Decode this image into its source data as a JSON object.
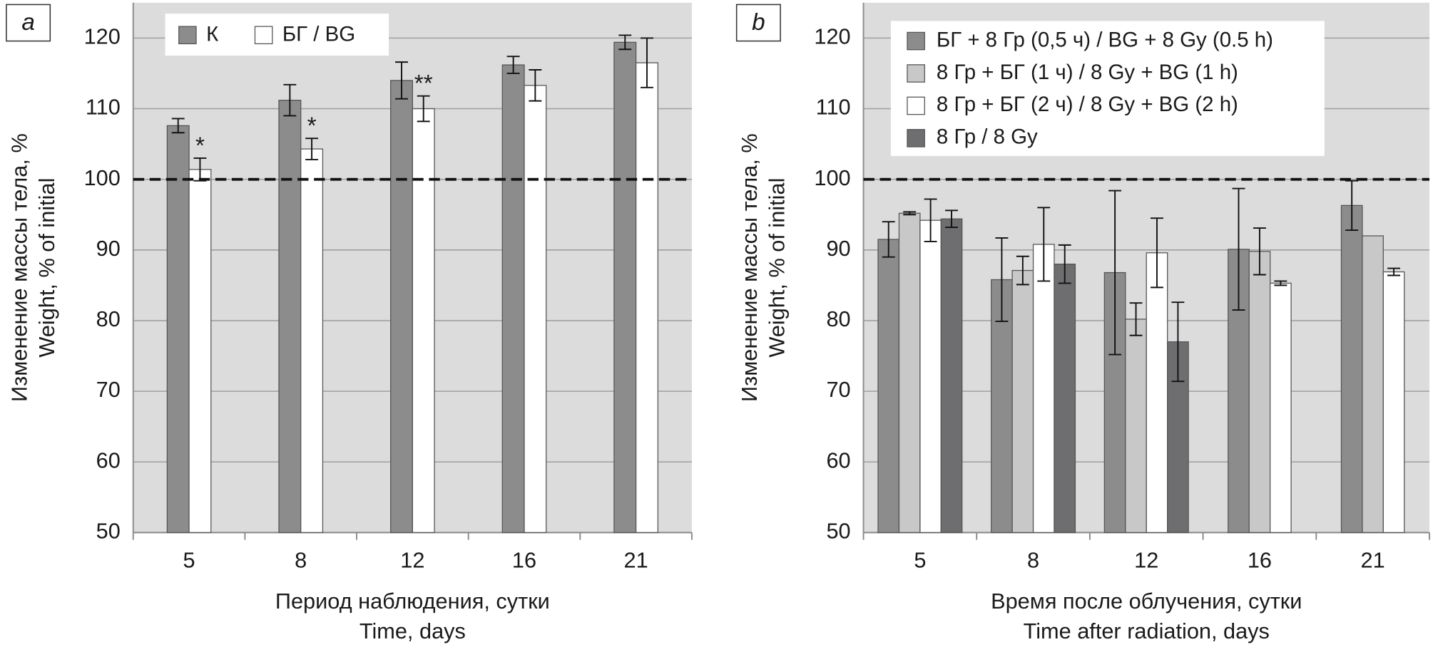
{
  "chart_data": [
    {
      "type": "bar",
      "panel_label": "a",
      "y_label": [
        "Изменение массы тела, %",
        "Weight, % of initial"
      ],
      "x_label": [
        "Период наблюдения, сутки",
        "Time, days"
      ],
      "categories": [
        "5",
        "8",
        "12",
        "16",
        "21"
      ],
      "series": [
        {
          "name": "К",
          "color": "#8c8c8c",
          "values": [
            107.6,
            111.2,
            114.0,
            116.2,
            119.4
          ],
          "errors": [
            1.0,
            2.2,
            2.6,
            1.2,
            1.0
          ]
        },
        {
          "name": "БГ / BG",
          "color": "#ffffff",
          "values": [
            101.4,
            104.3,
            110.0,
            113.3,
            116.5
          ],
          "errors": [
            1.6,
            1.5,
            1.8,
            2.2,
            3.5
          ],
          "markers": [
            "*",
            "*",
            "**",
            null,
            null
          ]
        }
      ],
      "ylim": [
        50,
        125
      ],
      "yticks": [
        50,
        60,
        70,
        80,
        90,
        100,
        110,
        120
      ],
      "grid": true,
      "reference_line": 100,
      "legend_layout": "horizontal"
    },
    {
      "type": "bar",
      "panel_label": "b",
      "y_label": [
        "Изменение массы тела, %",
        "Weight, % of initial"
      ],
      "x_label": [
        "Время после облучения, сутки",
        "Time after radiation, days"
      ],
      "categories": [
        "5",
        "8",
        "12",
        "16",
        "21"
      ],
      "series": [
        {
          "name": "БГ + 8 Гр (0,5 ч) / BG + 8 Gy (0.5 h)",
          "color": "#8c8c8c",
          "values": [
            91.5,
            85.8,
            86.8,
            90.1,
            96.3
          ],
          "errors": [
            2.5,
            5.9,
            11.6,
            8.6,
            3.5
          ]
        },
        {
          "name": "8 Гр +  БГ (1 ч) / 8 Gy + BG (1 h)",
          "color": "#c8c8c8",
          "values": [
            95.2,
            87.1,
            80.2,
            89.8,
            92.0
          ],
          "errors": [
            0.2,
            2.0,
            2.3,
            3.3,
            null
          ]
        },
        {
          "name": "8 Гр + БГ (2 ч) / 8 Gy + BG (2 h)",
          "color": "#ffffff",
          "values": [
            94.2,
            90.8,
            89.6,
            85.3,
            86.9
          ],
          "errors": [
            3.0,
            5.2,
            4.9,
            0.3,
            0.5
          ]
        },
        {
          "name": "8 Гр / 8 Gy",
          "color": "#6e6e70",
          "values": [
            94.4,
            88.0,
            77.0,
            null,
            null
          ],
          "errors": [
            1.2,
            2.7,
            5.6,
            null,
            null
          ]
        }
      ],
      "ylim": [
        50,
        125
      ],
      "yticks": [
        50,
        60,
        70,
        80,
        90,
        100,
        110,
        120
      ],
      "grid": true,
      "reference_line": 100,
      "legend_layout": "vertical"
    }
  ]
}
